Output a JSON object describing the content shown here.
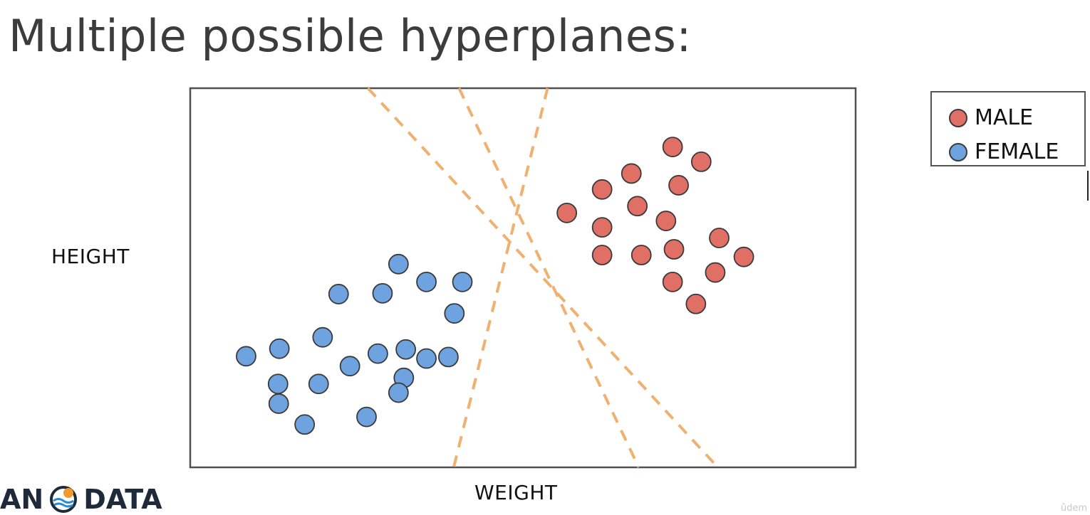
{
  "slide": {
    "title": "Multiple possible hyperplanes:",
    "brand_left": "AN",
    "brand_right": "DATA",
    "brand_logo_icon": "sun-wave-logo-icon",
    "watermark": "ûdem"
  },
  "chart_data": {
    "type": "scatter",
    "title": "Multiple possible hyperplanes:",
    "xlabel": "WEIGHT",
    "ylabel": "HEIGHT",
    "xlim": [
      0,
      100
    ],
    "ylim": [
      0,
      100
    ],
    "grid": false,
    "legend_position": "top-right",
    "series": [
      {
        "name": "MALE",
        "color": "#e07066",
        "points": [
          [
            72.5,
            84.5
          ],
          [
            76.8,
            80.6
          ],
          [
            66.3,
            77.5
          ],
          [
            61.9,
            73.3
          ],
          [
            73.4,
            74.4
          ],
          [
            56.6,
            67.1
          ],
          [
            67.2,
            68.9
          ],
          [
            61.9,
            63.3
          ],
          [
            71.5,
            65.0
          ],
          [
            79.5,
            60.5
          ],
          [
            61.9,
            56.0
          ],
          [
            67.8,
            56.0
          ],
          [
            72.7,
            57.5
          ],
          [
            83.2,
            55.5
          ],
          [
            78.9,
            51.4
          ],
          [
            72.5,
            48.9
          ],
          [
            76.0,
            43.1
          ]
        ]
      },
      {
        "name": "FEMALE",
        "color": "#6fa3e0",
        "points": [
          [
            31.3,
            53.6
          ],
          [
            35.5,
            48.9
          ],
          [
            40.9,
            48.9
          ],
          [
            22.3,
            45.7
          ],
          [
            28.9,
            45.9
          ],
          [
            39.7,
            40.6
          ],
          [
            19.9,
            34.3
          ],
          [
            32.4,
            31.1
          ],
          [
            28.2,
            30.0
          ],
          [
            35.5,
            28.7
          ],
          [
            38.8,
            29.1
          ],
          [
            8.4,
            29.3
          ],
          [
            13.4,
            31.3
          ],
          [
            24.0,
            26.7
          ],
          [
            32.1,
            23.6
          ],
          [
            19.3,
            22.0
          ],
          [
            13.2,
            22.0
          ],
          [
            31.3,
            19.7
          ],
          [
            13.3,
            16.8
          ],
          [
            26.5,
            13.3
          ],
          [
            17.2,
            11.3
          ]
        ]
      }
    ],
    "lines": [
      {
        "style": "dashed",
        "color": "#f0b070",
        "from": [
          26.7,
          100
        ],
        "to": [
          79.3,
          0
        ]
      },
      {
        "style": "dashed",
        "color": "#f0b070",
        "from": [
          40.4,
          100
        ],
        "to": [
          67.4,
          0
        ]
      },
      {
        "style": "dashed",
        "color": "#f0b070",
        "from": [
          53.7,
          100
        ],
        "to": [
          39.6,
          0
        ]
      }
    ]
  }
}
